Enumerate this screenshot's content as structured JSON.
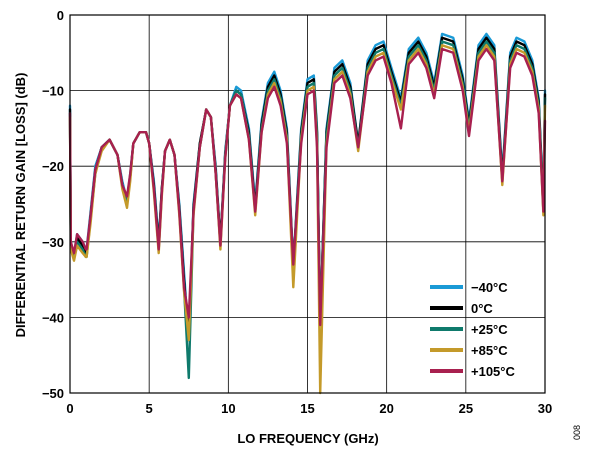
{
  "figure_id": "008",
  "chart_data": {
    "type": "line",
    "xlabel": "LO FREQUENCY (GHz)",
    "ylabel": "DIFFERENTIAL RETURN GAIN [LOSS] (dB)",
    "xlim": [
      0,
      30
    ],
    "ylim": [
      -50,
      0
    ],
    "xticks": [
      0,
      5,
      10,
      15,
      20,
      25,
      30
    ],
    "yticks": [
      0,
      -10,
      -20,
      -30,
      -40,
      -50
    ],
    "xtick_labels": [
      "0",
      "5",
      "10",
      "15",
      "20",
      "25",
      "30"
    ],
    "ytick_labels": [
      "0",
      "−10",
      "−20",
      "−30",
      "−40",
      "−50"
    ],
    "grid": true,
    "legend_position": "bottom-right",
    "x": [
      0,
      0.05,
      0.25,
      0.45,
      0.8,
      1.0,
      1.05,
      1.3,
      1.6,
      2.0,
      2.5,
      3.0,
      3.3,
      3.6,
      3.8,
      4.0,
      4.4,
      4.8,
      5.0,
      5.3,
      5.6,
      5.8,
      6.0,
      6.3,
      6.6,
      6.9,
      7.2,
      7.5,
      7.8,
      8.2,
      8.6,
      8.9,
      9.2,
      9.5,
      9.8,
      10.1,
      10.5,
      10.8,
      11.3,
      11.7,
      12.1,
      12.5,
      12.9,
      13.3,
      13.7,
      14.1,
      14.6,
      15.0,
      15.4,
      15.6,
      15.8,
      16.2,
      16.7,
      17.2,
      17.7,
      18.2,
      18.8,
      19.3,
      19.8,
      20.3,
      20.9,
      21.4,
      22.0,
      22.5,
      23.0,
      23.5,
      24.2,
      24.8,
      25.2,
      25.8,
      26.3,
      26.8,
      27.3,
      27.8,
      28.2,
      28.7,
      29.2,
      29.6,
      29.9,
      30.0
    ],
    "series": [
      {
        "name": "−40°C",
        "color": "#1a9ad6",
        "values": [
          -12,
          -30,
          -32,
          -29,
          -30,
          -31,
          -31,
          -26,
          -20,
          -17.5,
          -16.5,
          -18.5,
          -22,
          -24.5,
          -21,
          -17,
          -15.5,
          -15.5,
          -17,
          -22,
          -30,
          -23,
          -18,
          -16.5,
          -18.5,
          -25,
          -34,
          -43,
          -25,
          -17,
          -12.5,
          -13.5,
          -20,
          -30,
          -18,
          -12,
          -9.5,
          -10,
          -15,
          -25,
          -14,
          -9,
          -7.5,
          -10,
          -15,
          -33,
          -15,
          -8.5,
          -8,
          -15,
          -41,
          -15,
          -7,
          -6,
          -9,
          -17,
          -6,
          -4,
          -3.5,
          -7,
          -11,
          -4.5,
          -3,
          -5,
          -9,
          -2.5,
          -3,
          -8,
          -14,
          -4,
          -2.5,
          -4,
          -21,
          -5,
          -3,
          -3.5,
          -6,
          -11,
          -25,
          -10
        ]
      },
      {
        "name": "0°C",
        "color": "#000000",
        "values": [
          -12.5,
          -30.5,
          -32,
          -29.5,
          -30.5,
          -31.5,
          -31.5,
          -26.5,
          -20.5,
          -17.5,
          -16.5,
          -18.5,
          -22.5,
          -25,
          -21.5,
          -17,
          -15.5,
          -15.5,
          -17,
          -22.5,
          -30.5,
          -23,
          -18,
          -16.5,
          -18.5,
          -25.5,
          -35,
          -43,
          -25.5,
          -17,
          -12.5,
          -13.5,
          -20.5,
          -30,
          -18.5,
          -12,
          -10,
          -10.5,
          -15.5,
          -25.5,
          -14.5,
          -9.5,
          -8,
          -10.5,
          -15.5,
          -33.5,
          -15.5,
          -9,
          -8.5,
          -15.5,
          -41,
          -15.5,
          -7.5,
          -6.5,
          -9.5,
          -17,
          -6.5,
          -4.5,
          -4,
          -7.5,
          -11.5,
          -5,
          -3.5,
          -5.5,
          -9.5,
          -3,
          -3.5,
          -8.5,
          -14.5,
          -4.5,
          -3,
          -4.5,
          -21.5,
          -5.5,
          -3.5,
          -4,
          -6.5,
          -11.5,
          -25.5,
          -10.5
        ]
      },
      {
        "name": "+25°C",
        "color": "#0f7a6c",
        "values": [
          -13,
          -31,
          -32,
          -30,
          -31,
          -32,
          -32,
          -27,
          -21,
          -17.5,
          -16.5,
          -18.5,
          -22.5,
          -25,
          -21.5,
          -17,
          -15.5,
          -15.5,
          -17,
          -23,
          -31,
          -23.5,
          -18,
          -16.5,
          -18.5,
          -26,
          -36,
          -48,
          -26,
          -17.5,
          -12.5,
          -13.5,
          -21,
          -30.5,
          -18.5,
          -12,
          -10,
          -10.5,
          -16,
          -26,
          -15,
          -10,
          -8.5,
          -11,
          -16,
          -34,
          -16,
          -9.5,
          -9,
          -16,
          -41,
          -16,
          -8,
          -7,
          -10,
          -17.5,
          -7,
          -5,
          -4.5,
          -8,
          -12,
          -5.5,
          -4,
          -6,
          -10,
          -3.5,
          -4,
          -9,
          -15,
          -5,
          -3.5,
          -5,
          -22,
          -6,
          -4,
          -4.5,
          -7,
          -12,
          -26,
          -11
        ]
      },
      {
        "name": "+85°C",
        "color": "#c49a2a",
        "values": [
          -13.5,
          -31,
          -32.5,
          -30.5,
          -31.5,
          -32,
          -32,
          -27.5,
          -21,
          -18,
          -16.5,
          -18.5,
          -23,
          -25.5,
          -22,
          -17,
          -15.5,
          -15.5,
          -17,
          -23.5,
          -31.5,
          -24,
          -18,
          -16.5,
          -18.5,
          -26.5,
          -36.5,
          -43,
          -26.5,
          -17.5,
          -12.5,
          -13.5,
          -21,
          -31,
          -19,
          -12,
          -10.5,
          -11,
          -16.5,
          -26.5,
          -15.5,
          -10.5,
          -9,
          -11.5,
          -16.5,
          -36,
          -16.5,
          -10,
          -9.5,
          -17,
          -50,
          -17,
          -8.5,
          -7.5,
          -10.5,
          -18,
          -7.5,
          -5.5,
          -5,
          -8.5,
          -12.5,
          -6,
          -4.5,
          -6.5,
          -10.5,
          -4,
          -4.5,
          -9.5,
          -15.5,
          -5.5,
          -4,
          -5.5,
          -22.5,
          -6.5,
          -4.5,
          -5,
          -7.5,
          -12.5,
          -26.5,
          -12
        ]
      },
      {
        "name": "+105°C",
        "color": "#a8204f",
        "values": [
          -13,
          -30,
          -31.5,
          -29,
          -30,
          -31,
          -31,
          -26.5,
          -20.5,
          -17.5,
          -16.5,
          -18.5,
          -22.5,
          -24,
          -21,
          -17,
          -15.5,
          -15.5,
          -17,
          -23,
          -31,
          -23.5,
          -18,
          -16.5,
          -18.5,
          -26,
          -36,
          -40,
          -26,
          -17.5,
          -12.5,
          -13.5,
          -21,
          -30.5,
          -19,
          -12,
          -10.5,
          -11,
          -16.5,
          -26,
          -15.5,
          -11,
          -9.5,
          -12,
          -17,
          -33,
          -17,
          -10.5,
          -10,
          -17.5,
          -41,
          -17.5,
          -9,
          -8,
          -11,
          -17.5,
          -8,
          -6,
          -5.5,
          -9,
          -15,
          -6.5,
          -5,
          -7,
          -11,
          -4.5,
          -5,
          -10,
          -16,
          -6,
          -4.5,
          -6,
          -22,
          -7,
          -5,
          -5.5,
          -8,
          -13,
          -26,
          -14
        ]
      }
    ]
  }
}
